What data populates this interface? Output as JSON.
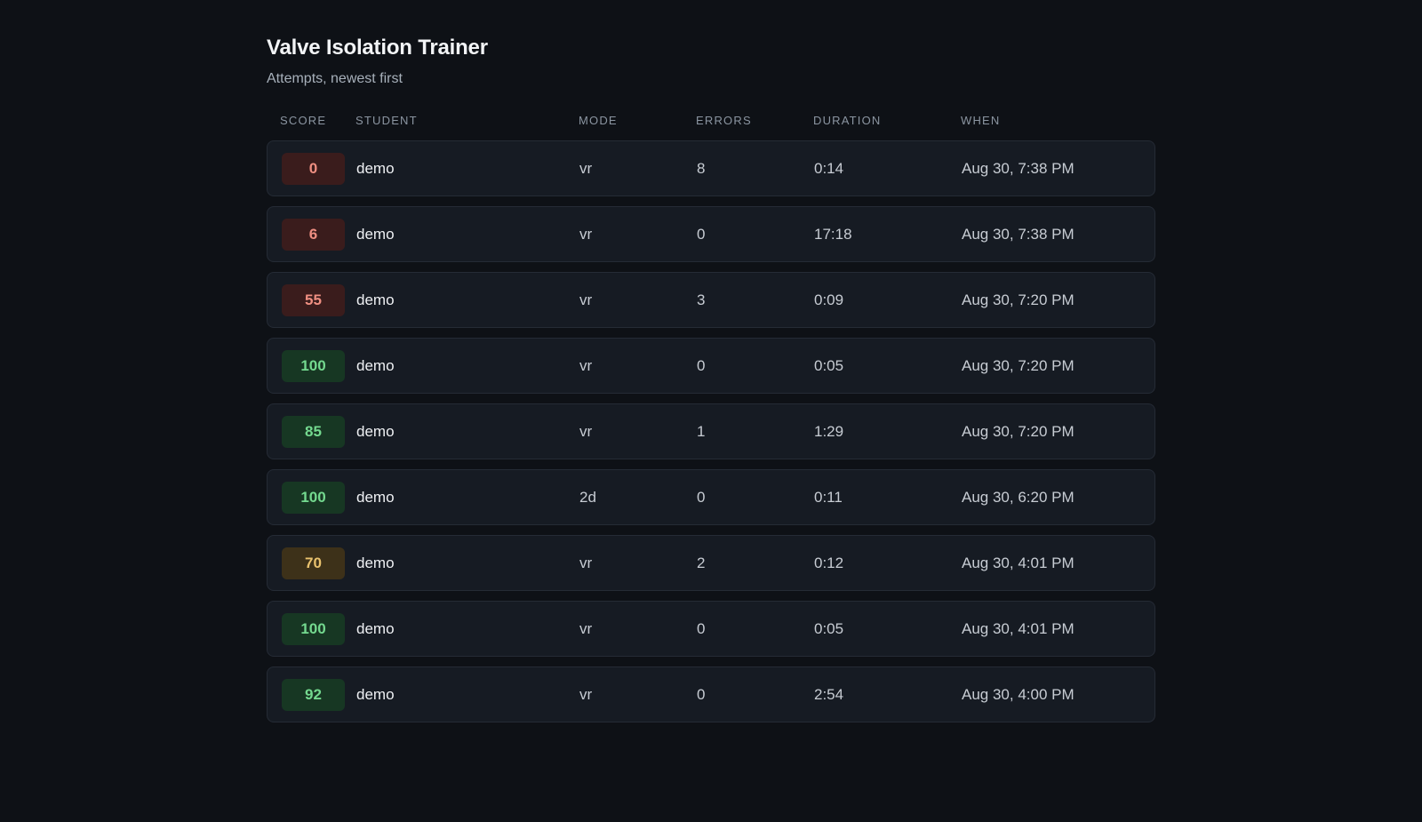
{
  "page": {
    "title": "Valve Isolation Trainer",
    "subtitle": "Attempts, newest first"
  },
  "columns": {
    "score": "SCORE",
    "student": "STUDENT",
    "mode": "MODE",
    "errors": "ERRORS",
    "duration": "DURATION",
    "when": "WHEN"
  },
  "score_colors": {
    "low": "#ef8f82",
    "medium": "#e9c26e",
    "high": "#74d98f"
  },
  "attempts": [
    {
      "score": "0",
      "grade": "low",
      "student": "demo",
      "mode": "vr",
      "errors": "8",
      "duration": "0:14",
      "when": "Aug 30, 7:38 PM"
    },
    {
      "score": "6",
      "grade": "low",
      "student": "demo",
      "mode": "vr",
      "errors": "0",
      "duration": "17:18",
      "when": "Aug 30, 7:38 PM"
    },
    {
      "score": "55",
      "grade": "low",
      "student": "demo",
      "mode": "vr",
      "errors": "3",
      "duration": "0:09",
      "when": "Aug 30, 7:20 PM"
    },
    {
      "score": "100",
      "grade": "high",
      "student": "demo",
      "mode": "vr",
      "errors": "0",
      "duration": "0:05",
      "when": "Aug 30, 7:20 PM"
    },
    {
      "score": "85",
      "grade": "high",
      "student": "demo",
      "mode": "vr",
      "errors": "1",
      "duration": "1:29",
      "when": "Aug 30, 7:20 PM"
    },
    {
      "score": "100",
      "grade": "high",
      "student": "demo",
      "mode": "2d",
      "errors": "0",
      "duration": "0:11",
      "when": "Aug 30, 6:20 PM"
    },
    {
      "score": "70",
      "grade": "medium",
      "student": "demo",
      "mode": "vr",
      "errors": "2",
      "duration": "0:12",
      "when": "Aug 30, 4:01 PM"
    },
    {
      "score": "100",
      "grade": "high",
      "student": "demo",
      "mode": "vr",
      "errors": "0",
      "duration": "0:05",
      "when": "Aug 30, 4:01 PM"
    },
    {
      "score": "92",
      "grade": "high",
      "student": "demo",
      "mode": "vr",
      "errors": "0",
      "duration": "2:54",
      "when": "Aug 30, 4:00 PM"
    }
  ]
}
